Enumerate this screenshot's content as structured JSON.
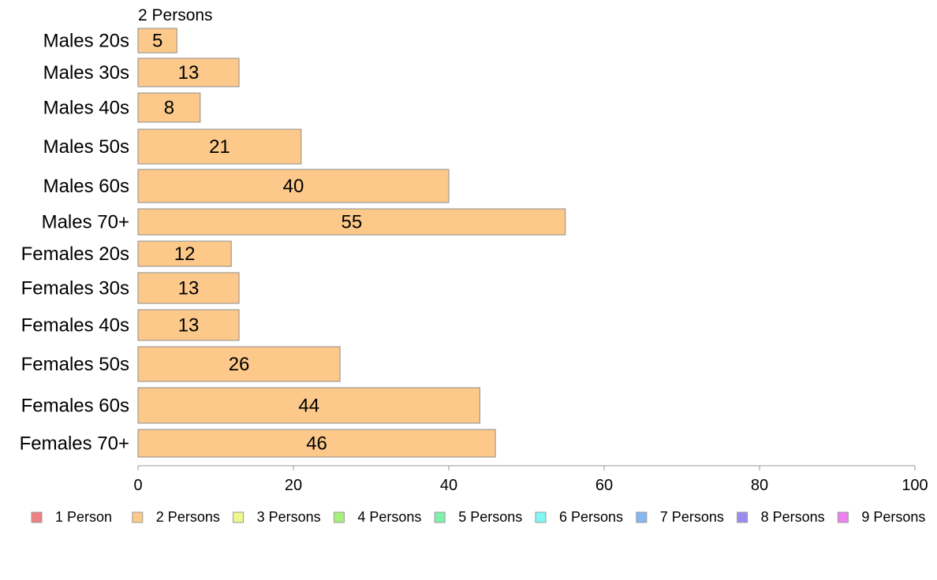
{
  "chart_data": {
    "type": "bar",
    "orientation": "horizontal",
    "panel_title": "2 Persons",
    "categories": [
      "Males 20s",
      "Males 30s",
      "Males 40s",
      "Males 50s",
      "Males 60s",
      "Males 70+",
      "Females 20s",
      "Females 30s",
      "Females 40s",
      "Females 50s",
      "Females 60s",
      "Females 70+"
    ],
    "series": [
      {
        "name": "2 Persons",
        "values": [
          5,
          13,
          8,
          21,
          40,
          55,
          12,
          13,
          13,
          26,
          44,
          46
        ]
      }
    ],
    "xlim": [
      0,
      100
    ],
    "xticks": [
      "0",
      "20",
      "40",
      "60",
      "80",
      "100"
    ],
    "grid": false,
    "legend_position": "bottom",
    "legend": [
      {
        "name": "1 Person",
        "color": "#f08080"
      },
      {
        "name": "2 Persons",
        "color": "#fcc98a"
      },
      {
        "name": "3 Persons",
        "color": "#eef98c"
      },
      {
        "name": "4 Persons",
        "color": "#a6f07e"
      },
      {
        "name": "5 Persons",
        "color": "#80f0ad"
      },
      {
        "name": "6 Persons",
        "color": "#80f7f5"
      },
      {
        "name": "7 Persons",
        "color": "#85b7f2"
      },
      {
        "name": "8 Persons",
        "color": "#9d8af0"
      },
      {
        "name": "9 Persons",
        "color": "#ef80f0"
      }
    ],
    "bar_color": "#fcc98a",
    "bar_border": "#8c8c8c"
  }
}
